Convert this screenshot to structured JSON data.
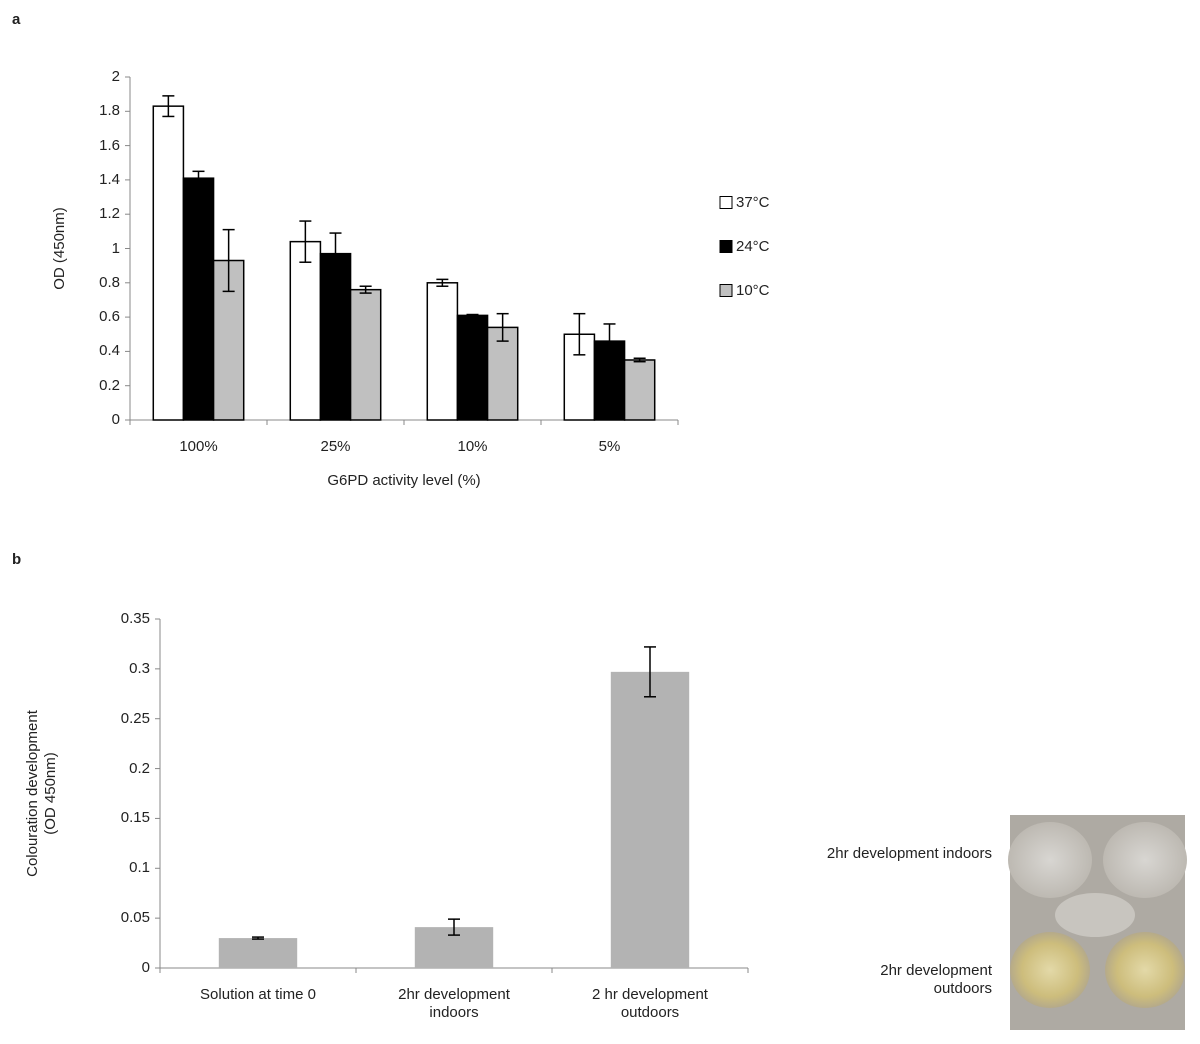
{
  "panels": [
    "a",
    "b"
  ],
  "chart_data": [
    {
      "type": "bar",
      "xlabel": "G6PD activity level (%)",
      "ylabel": [
        "OD (450nm)"
      ],
      "categories": [
        "100%",
        "25%",
        "10%",
        "5%"
      ],
      "series": [
        {
          "name": "37°C",
          "color": "#ffffff",
          "edgecolor": "#000000",
          "values": [
            1.83,
            1.04,
            0.8,
            0.5
          ],
          "errors": [
            0.06,
            0.12,
            0.02,
            0.12
          ]
        },
        {
          "name": "24°C",
          "color": "#000000",
          "edgecolor": "#000000",
          "values": [
            1.41,
            0.97,
            0.61,
            0.46
          ],
          "errors": [
            0.04,
            0.12,
            0.005,
            0.1
          ]
        },
        {
          "name": "10°C",
          "color": "#c0c0c0",
          "edgecolor": "#000000",
          "values": [
            0.93,
            0.76,
            0.54,
            0.35
          ],
          "errors": [
            0.18,
            0.02,
            0.08,
            0.01
          ]
        }
      ],
      "ylim": [
        0,
        2
      ],
      "yticks": [
        0,
        0.2,
        0.4,
        0.6,
        0.8,
        1,
        1.2,
        1.4,
        1.6,
        1.8,
        2
      ],
      "legend": "right"
    },
    {
      "type": "bar",
      "ylabel": [
        "Colouration development",
        "(OD 450nm)"
      ],
      "categories": [
        "Solution at time 0",
        "2hr development indoors",
        "2 hr development outdoors"
      ],
      "values": [
        0.03,
        0.041,
        0.297
      ],
      "errors": [
        0.001,
        0.008,
        0.025
      ],
      "color": "#b3b3b3",
      "ylim": [
        0,
        0.35
      ],
      "yticks": [
        0,
        0.05,
        0.1,
        0.15,
        0.2,
        0.25,
        0.3,
        0.35
      ]
    }
  ],
  "photo": {
    "labels": [
      "2hr development indoors",
      "2hr development outdoors"
    ]
  }
}
